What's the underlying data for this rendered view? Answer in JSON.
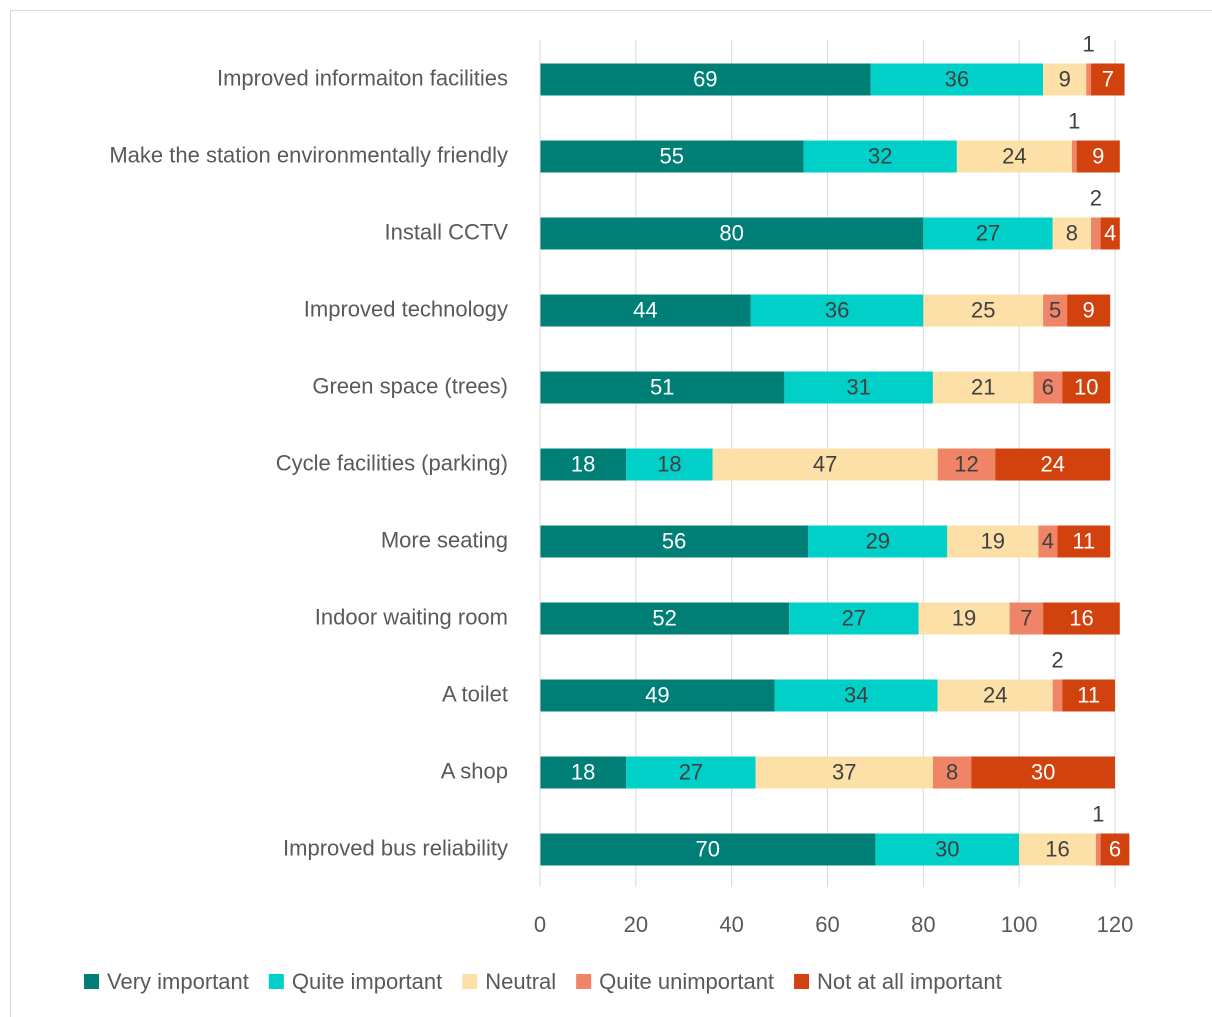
{
  "chart_data": {
    "type": "bar",
    "orientation": "horizontal",
    "stacked": true,
    "categories": [
      "Improved informaiton facilities",
      "Make the station environmentally friendly",
      "Install CCTV",
      "Improved technology",
      "Green space (trees)",
      "Cycle facilities (parking)",
      "More seating",
      "Indoor waiting room",
      "A toilet",
      "A shop",
      "Improved bus reliability"
    ],
    "series": [
      {
        "name": "Very important",
        "color": "#007f77",
        "values": [
          69,
          55,
          80,
          44,
          51,
          18,
          56,
          52,
          49,
          18,
          70
        ]
      },
      {
        "name": "Quite important",
        "color": "#00d0c8",
        "values": [
          36,
          32,
          27,
          36,
          31,
          18,
          29,
          27,
          34,
          27,
          30
        ]
      },
      {
        "name": "Neutral",
        "color": "#fde0a8",
        "values": [
          9,
          24,
          8,
          25,
          21,
          47,
          19,
          19,
          24,
          37,
          16
        ]
      },
      {
        "name": "Quite unimportant",
        "color": "#ef8466",
        "values": [
          1,
          1,
          2,
          5,
          6,
          12,
          4,
          7,
          2,
          8,
          1
        ]
      },
      {
        "name": "Not at all important",
        "color": "#d2420e",
        "values": [
          7,
          9,
          4,
          9,
          10,
          24,
          11,
          16,
          11,
          30,
          6
        ]
      }
    ],
    "xlim": [
      0,
      120
    ],
    "xticks": [
      0,
      20,
      40,
      60,
      80,
      100,
      120
    ],
    "grid": true,
    "legend": "bottom"
  }
}
